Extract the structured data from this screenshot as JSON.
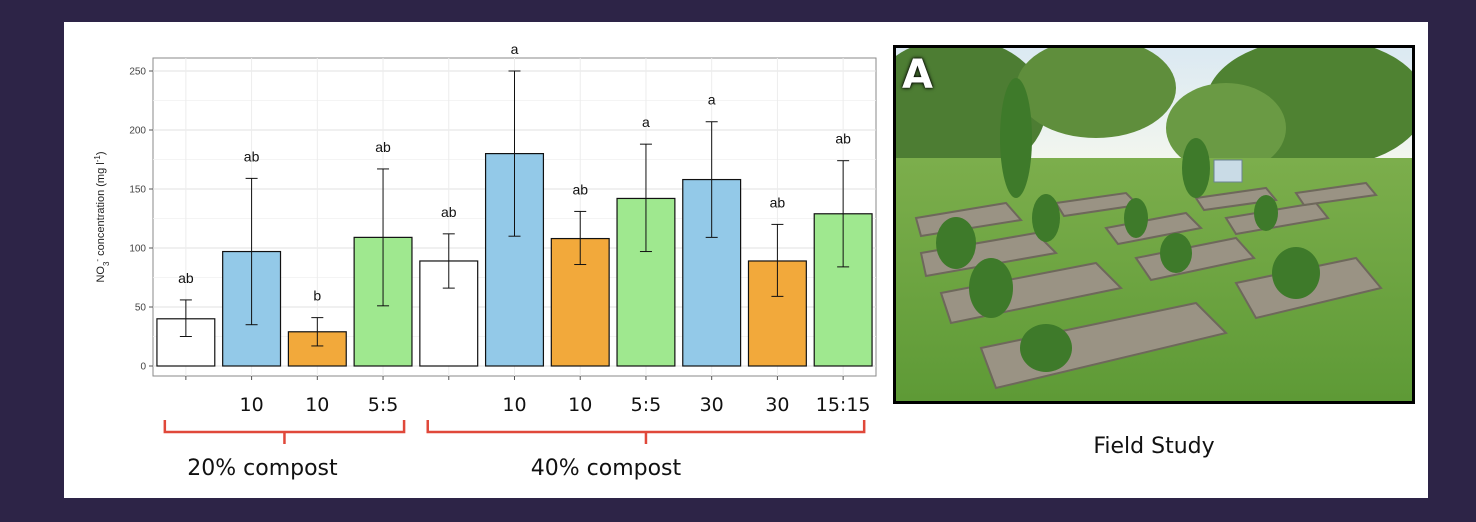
{
  "chart_data": {
    "type": "bar",
    "ylabel_main": "NO",
    "ylabel_sub": "3",
    "ylabel_sup": "-",
    "ylabel_tail": " concentration (mg l",
    "ylabel_unit_sup": "-1",
    "ylabel_close": ")",
    "ylim": [
      0,
      260
    ],
    "yticks": [
      0,
      50,
      100,
      150,
      200,
      250
    ],
    "grid": true,
    "categories": [
      "",
      "10",
      "10",
      "5:5",
      "",
      "10",
      "10",
      "5:5",
      "30",
      "30",
      "15:15"
    ],
    "values": [
      40,
      97,
      29,
      109,
      89,
      180,
      108,
      142,
      158,
      89,
      129
    ],
    "err_low": [
      25,
      35,
      17,
      51,
      66,
      110,
      86,
      97,
      109,
      59,
      84
    ],
    "err_high": [
      56,
      159,
      41,
      167,
      112,
      250,
      131,
      188,
      207,
      120,
      174
    ],
    "letters": [
      "ab",
      "ab",
      "b",
      "ab",
      "ab",
      "a",
      "ab",
      "a",
      "a",
      "ab",
      "ab"
    ],
    "bar_colors": [
      "#ffffff",
      "#93c9e8",
      "#f2a93b",
      "#9fe88f",
      "#ffffff",
      "#93c9e8",
      "#f2a93b",
      "#9fe88f",
      "#93c9e8",
      "#f2a93b",
      "#9fe88f"
    ],
    "groups": [
      {
        "label": "20% compost",
        "start": 0,
        "end": 3
      },
      {
        "label": "40% compost",
        "start": 4,
        "end": 10
      }
    ],
    "bracket_color": "#e0483a"
  },
  "photo": {
    "panel_letter": "A",
    "caption": "Field Study"
  }
}
